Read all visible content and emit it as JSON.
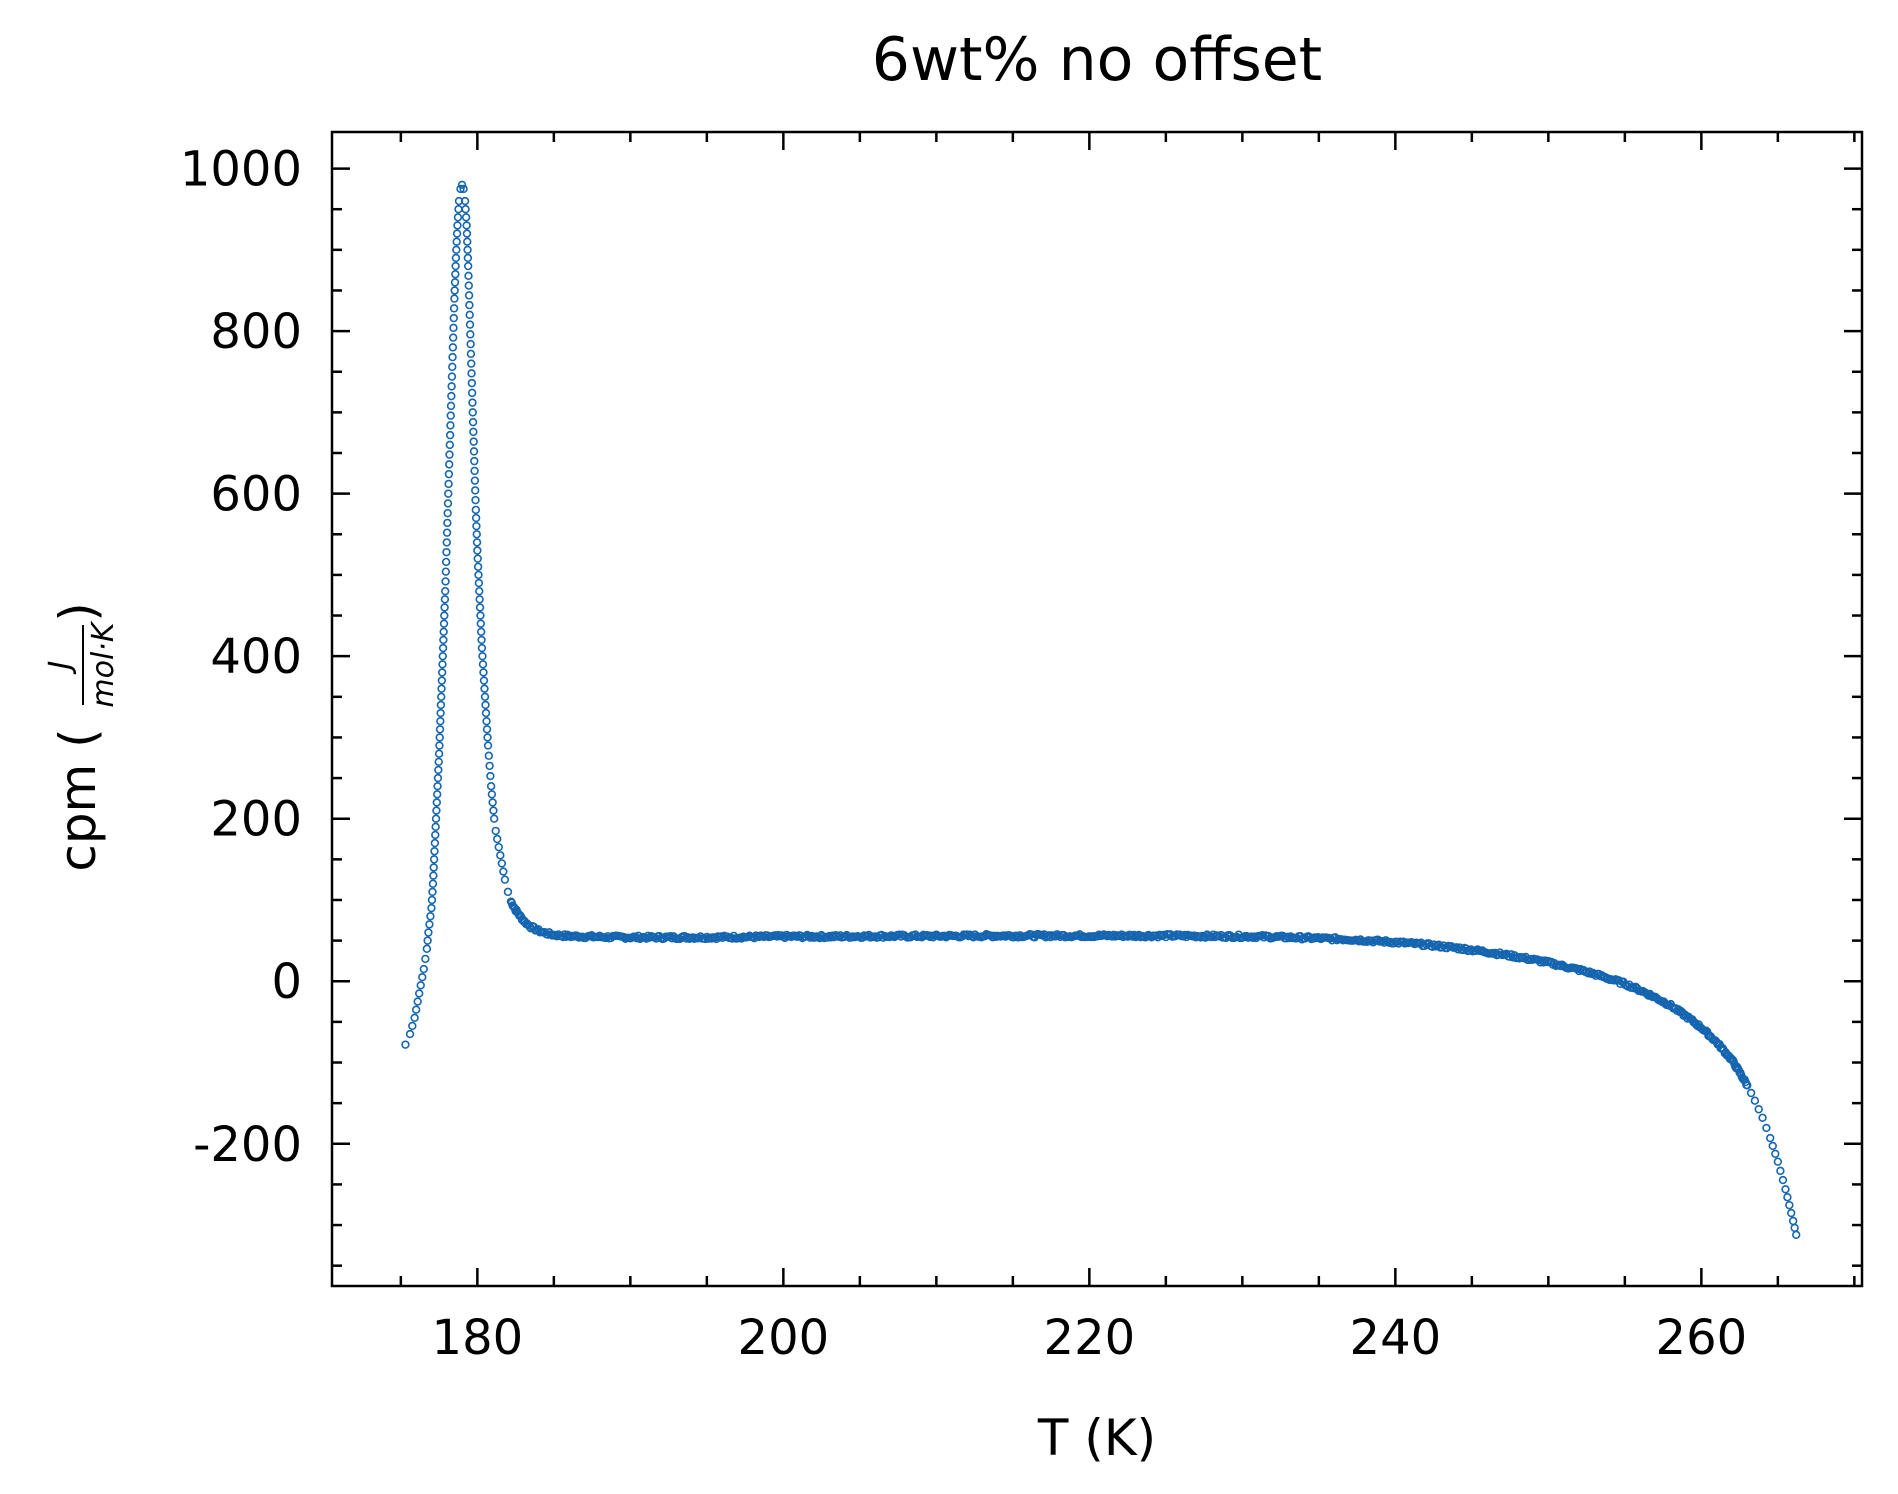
{
  "chart_data": {
    "type": "scatter",
    "title": "6wt% no offset",
    "xlabel": "T (K)",
    "ylabel": {
      "prefix": "cpm (",
      "numerator": "J",
      "denominator": "mol·K",
      "suffix": ")"
    },
    "xlim": [
      170.5,
      270.5
    ],
    "ylim": [
      -375,
      1045
    ],
    "xticks": [
      180,
      200,
      220,
      240,
      260
    ],
    "xtick_labels": [
      "180",
      "200",
      "220",
      "240",
      "260"
    ],
    "yticks": [
      -200,
      0,
      200,
      400,
      600,
      800,
      1000
    ],
    "ytick_labels": [
      "-200",
      "0",
      "200",
      "400",
      "600",
      "800",
      "1000"
    ],
    "x_minor_step": 5,
    "y_minor_step": 50,
    "grid": false,
    "marker": "open-circle",
    "series": [
      {
        "color": "#1565b0",
        "points": [
          [
            175.3,
            -78
          ],
          [
            175.6,
            -65
          ],
          [
            175.9,
            -45
          ],
          [
            176.1,
            -25
          ],
          [
            176.3,
            -5
          ],
          [
            176.5,
            15
          ],
          [
            176.7,
            40
          ],
          [
            176.8,
            60
          ],
          [
            177.0,
            90
          ],
          [
            177.1,
            120
          ],
          [
            177.2,
            160
          ],
          [
            177.3,
            200
          ],
          [
            177.4,
            240
          ],
          [
            177.5,
            280
          ],
          [
            177.6,
            330
          ],
          [
            177.7,
            380
          ],
          [
            177.8,
            430
          ],
          [
            177.9,
            480
          ],
          [
            178.0,
            540
          ],
          [
            178.1,
            600
          ],
          [
            178.2,
            660
          ],
          [
            178.3,
            720
          ],
          [
            178.4,
            780
          ],
          [
            178.5,
            840
          ],
          [
            178.6,
            890
          ],
          [
            178.7,
            930
          ],
          [
            178.8,
            960
          ],
          [
            178.9,
            975
          ],
          [
            179.0,
            980
          ],
          [
            179.1,
            975
          ],
          [
            179.2,
            960
          ],
          [
            179.3,
            930
          ],
          [
            179.4,
            880
          ],
          [
            179.5,
            820
          ],
          [
            179.6,
            760
          ],
          [
            179.7,
            700
          ],
          [
            179.8,
            640
          ],
          [
            179.9,
            580
          ],
          [
            180.0,
            530
          ],
          [
            180.1,
            490
          ],
          [
            180.2,
            450
          ],
          [
            180.3,
            410
          ],
          [
            180.4,
            380
          ],
          [
            180.5,
            350
          ],
          [
            180.6,
            320
          ],
          [
            180.7,
            290
          ],
          [
            180.8,
            265
          ],
          [
            180.9,
            240
          ],
          [
            181.0,
            220
          ],
          [
            181.1,
            200
          ],
          [
            181.2,
            185
          ],
          [
            181.4,
            165
          ],
          [
            181.6,
            145
          ],
          [
            181.8,
            125
          ],
          [
            182.0,
            110
          ],
          [
            182.2,
            98
          ],
          [
            182.5,
            88
          ],
          [
            182.8,
            80
          ],
          [
            183.1,
            73
          ],
          [
            183.5,
            67
          ],
          [
            184.0,
            62
          ],
          [
            184.5,
            59
          ],
          [
            185.0,
            57
          ],
          [
            186.0,
            55.5
          ],
          [
            188.0,
            54.5
          ],
          [
            190.0,
            54
          ],
          [
            192.0,
            54
          ],
          [
            195.0,
            54
          ],
          [
            198.0,
            54.5
          ],
          [
            200.0,
            55
          ],
          [
            203.0,
            55
          ],
          [
            206.0,
            55.5
          ],
          [
            210.0,
            55.5
          ],
          [
            214.0,
            56
          ],
          [
            218.0,
            56
          ],
          [
            222.0,
            56
          ],
          [
            225.0,
            56
          ],
          [
            228.0,
            55.5
          ],
          [
            231.0,
            55
          ],
          [
            234.0,
            53.5
          ],
          [
            237.0,
            51.5
          ],
          [
            240.0,
            48
          ],
          [
            242.0,
            45
          ],
          [
            244.0,
            41
          ],
          [
            246.0,
            36
          ],
          [
            248.0,
            30
          ],
          [
            250.0,
            23
          ],
          [
            252.0,
            14
          ],
          [
            253.0,
            9
          ],
          [
            254.0,
            3
          ],
          [
            255.0,
            -3
          ],
          [
            256.0,
            -11
          ],
          [
            257.0,
            -20
          ],
          [
            258.0,
            -30
          ],
          [
            259.0,
            -43
          ],
          [
            260.0,
            -57
          ],
          [
            261.0,
            -75
          ],
          [
            262.0,
            -97
          ],
          [
            262.5,
            -112
          ],
          [
            263.0,
            -128
          ],
          [
            263.5,
            -147
          ],
          [
            264.0,
            -168
          ],
          [
            264.5,
            -193
          ],
          [
            265.0,
            -222
          ],
          [
            265.5,
            -256
          ],
          [
            266.0,
            -295
          ],
          [
            266.2,
            -312
          ]
        ]
      }
    ]
  }
}
